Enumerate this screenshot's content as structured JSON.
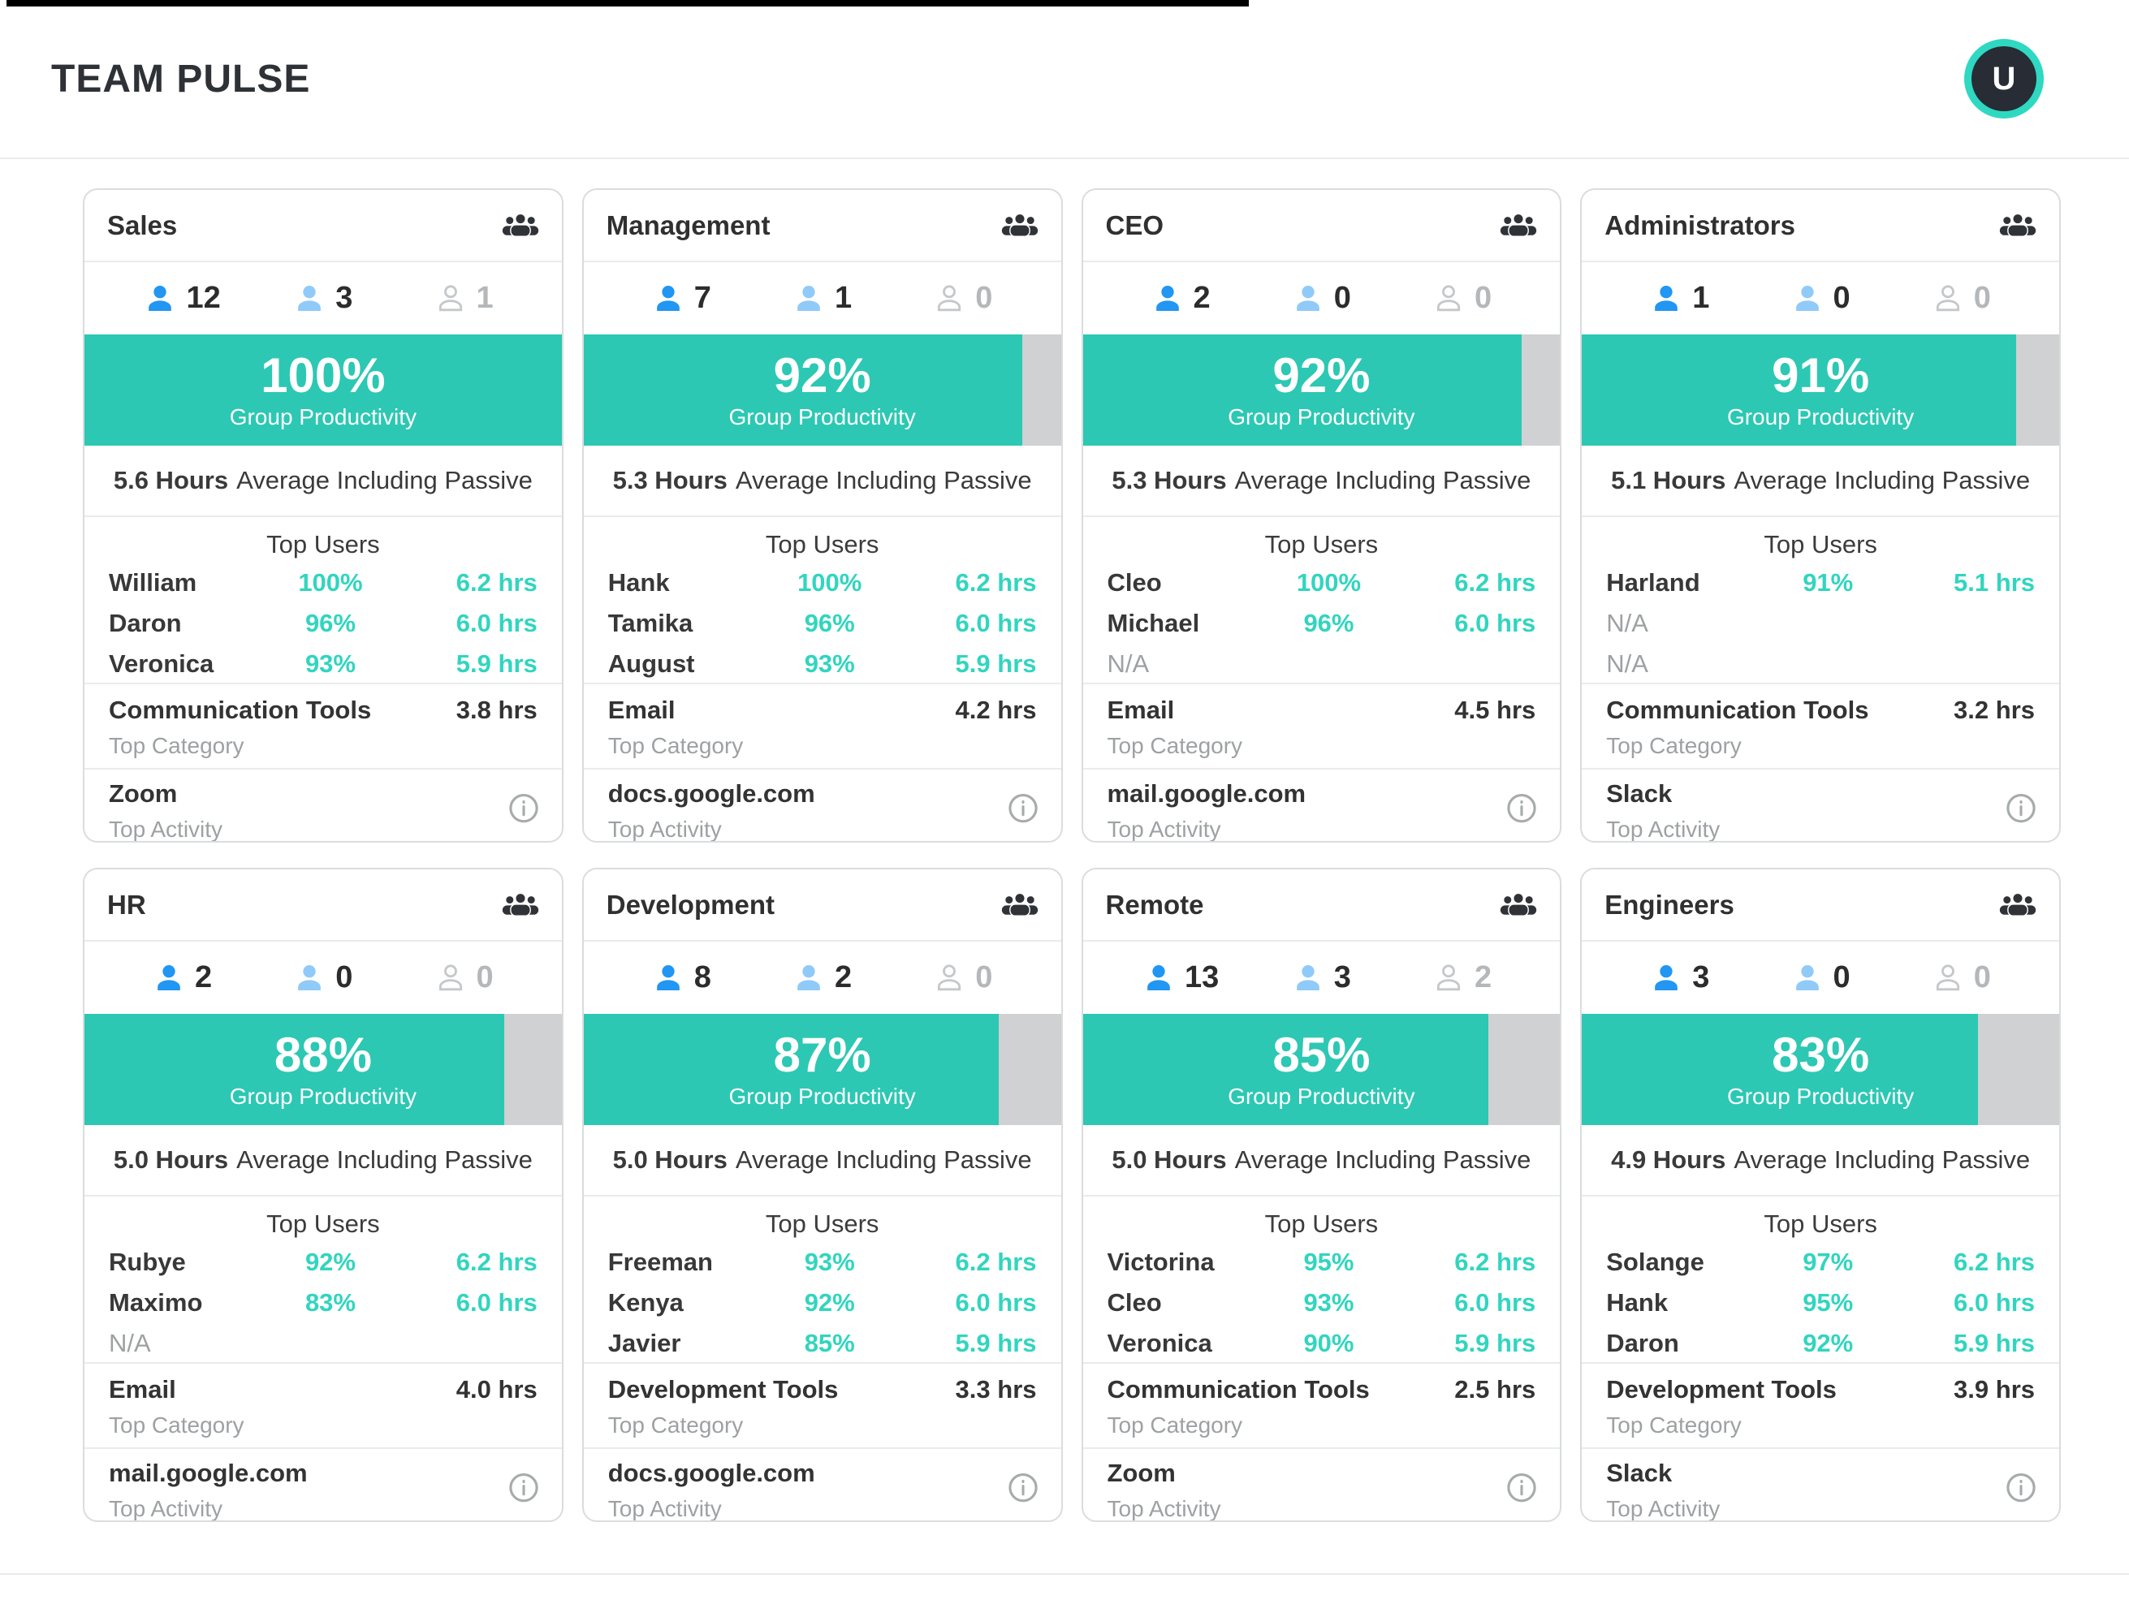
{
  "header": {
    "title": "TEAM PULSE",
    "avatar_initial": "U"
  },
  "labels": {
    "group_productivity": "Group Productivity",
    "average_suffix": "Average Including Passive",
    "top_users": "Top Users",
    "top_category": "Top Category",
    "top_activity": "Top Activity"
  },
  "colors": {
    "accent_bar": "#2cc8b3",
    "accent_text": "#31d5bf",
    "avatar_ring": "#2fd8c1",
    "active_blue": "#2196f3",
    "idle_blue": "#90caf9",
    "offline_gray": "#c5c8ca",
    "bar_track": "#cfd1d2"
  },
  "icons": {
    "group": "group-icon",
    "person_active": "person-icon-active",
    "person_idle": "person-icon-idle",
    "person_offline": "person-icon-offline",
    "info": "info-icon"
  },
  "teams": [
    {
      "name": "Sales",
      "counts": {
        "active": "12",
        "idle": "3",
        "offline": "1"
      },
      "productivity": {
        "pct": 100,
        "display": "100%"
      },
      "avg_hours": "5.6 Hours",
      "top_users": [
        {
          "name": "William",
          "pct": "100%",
          "hrs": "6.2 hrs"
        },
        {
          "name": "Daron",
          "pct": "96%",
          "hrs": "6.0 hrs"
        },
        {
          "name": "Veronica",
          "pct": "93%",
          "hrs": "5.9 hrs"
        }
      ],
      "top_category": {
        "name": "Communication Tools",
        "hrs": "3.8 hrs"
      },
      "top_activity": "Zoom"
    },
    {
      "name": "Management",
      "counts": {
        "active": "7",
        "idle": "1",
        "offline": "0"
      },
      "productivity": {
        "pct": 92,
        "display": "92%"
      },
      "avg_hours": "5.3 Hours",
      "top_users": [
        {
          "name": "Hank",
          "pct": "100%",
          "hrs": "6.2 hrs"
        },
        {
          "name": "Tamika",
          "pct": "96%",
          "hrs": "6.0 hrs"
        },
        {
          "name": "August",
          "pct": "93%",
          "hrs": "5.9 hrs"
        }
      ],
      "top_category": {
        "name": "Email",
        "hrs": "4.2 hrs"
      },
      "top_activity": "docs.google.com"
    },
    {
      "name": "CEO",
      "counts": {
        "active": "2",
        "idle": "0",
        "offline": "0"
      },
      "productivity": {
        "pct": 92,
        "display": "92%"
      },
      "avg_hours": "5.3 Hours",
      "top_users": [
        {
          "name": "Cleo",
          "pct": "100%",
          "hrs": "6.2 hrs"
        },
        {
          "name": "Michael",
          "pct": "96%",
          "hrs": "6.0 hrs"
        },
        {
          "name": "N/A",
          "pct": "",
          "hrs": ""
        }
      ],
      "top_category": {
        "name": "Email",
        "hrs": "4.5 hrs"
      },
      "top_activity": "mail.google.com"
    },
    {
      "name": "Administrators",
      "counts": {
        "active": "1",
        "idle": "0",
        "offline": "0"
      },
      "productivity": {
        "pct": 91,
        "display": "91%"
      },
      "avg_hours": "5.1 Hours",
      "top_users": [
        {
          "name": "Harland",
          "pct": "91%",
          "hrs": "5.1 hrs"
        },
        {
          "name": "N/A",
          "pct": "",
          "hrs": ""
        },
        {
          "name": "N/A",
          "pct": "",
          "hrs": ""
        }
      ],
      "top_category": {
        "name": "Communication Tools",
        "hrs": "3.2 hrs"
      },
      "top_activity": "Slack"
    },
    {
      "name": "HR",
      "counts": {
        "active": "2",
        "idle": "0",
        "offline": "0"
      },
      "productivity": {
        "pct": 88,
        "display": "88%"
      },
      "avg_hours": "5.0 Hours",
      "top_users": [
        {
          "name": "Rubye",
          "pct": "92%",
          "hrs": "6.2 hrs"
        },
        {
          "name": "Maximo",
          "pct": "83%",
          "hrs": "6.0 hrs"
        },
        {
          "name": "N/A",
          "pct": "",
          "hrs": ""
        }
      ],
      "top_category": {
        "name": "Email",
        "hrs": "4.0 hrs"
      },
      "top_activity": "mail.google.com"
    },
    {
      "name": "Development",
      "counts": {
        "active": "8",
        "idle": "2",
        "offline": "0"
      },
      "productivity": {
        "pct": 87,
        "display": "87%"
      },
      "avg_hours": "5.0 Hours",
      "top_users": [
        {
          "name": "Freeman",
          "pct": "93%",
          "hrs": "6.2 hrs"
        },
        {
          "name": "Kenya",
          "pct": "92%",
          "hrs": "6.0 hrs"
        },
        {
          "name": "Javier",
          "pct": "85%",
          "hrs": "5.9 hrs"
        }
      ],
      "top_category": {
        "name": "Development Tools",
        "hrs": "3.3 hrs"
      },
      "top_activity": "docs.google.com"
    },
    {
      "name": "Remote",
      "counts": {
        "active": "13",
        "idle": "3",
        "offline": "2"
      },
      "productivity": {
        "pct": 85,
        "display": "85%"
      },
      "avg_hours": "5.0 Hours",
      "top_users": [
        {
          "name": "Victorina",
          "pct": "95%",
          "hrs": "6.2 hrs"
        },
        {
          "name": "Cleo",
          "pct": "93%",
          "hrs": "6.0 hrs"
        },
        {
          "name": "Veronica",
          "pct": "90%",
          "hrs": "5.9 hrs"
        }
      ],
      "top_category": {
        "name": "Communication Tools",
        "hrs": "2.5 hrs"
      },
      "top_activity": "Zoom"
    },
    {
      "name": "Engineers",
      "counts": {
        "active": "3",
        "idle": "0",
        "offline": "0"
      },
      "productivity": {
        "pct": 83,
        "display": "83%"
      },
      "avg_hours": "4.9 Hours",
      "top_users": [
        {
          "name": "Solange",
          "pct": "97%",
          "hrs": "6.2 hrs"
        },
        {
          "name": "Hank",
          "pct": "95%",
          "hrs": "6.0 hrs"
        },
        {
          "name": "Daron",
          "pct": "92%",
          "hrs": "5.9 hrs"
        }
      ],
      "top_category": {
        "name": "Development Tools",
        "hrs": "3.9 hrs"
      },
      "top_activity": "Slack"
    }
  ]
}
